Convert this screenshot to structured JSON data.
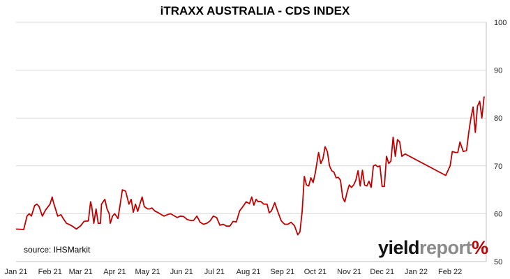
{
  "source_note": "source: IHSMarkit",
  "brand": {
    "part1": "yield",
    "part2": "report",
    "symbol": "%"
  },
  "colors": {
    "series": "#c00000",
    "grid": "#d9d9d9",
    "axis": "#bfbfbf"
  },
  "chart_data": {
    "type": "line",
    "title": "iTRAXX AUSTRALIA - CDS INDEX",
    "xlabel": "",
    "ylabel": "",
    "ylim": [
      50,
      100
    ],
    "y_ticks": [
      50,
      60,
      70,
      80,
      90,
      100
    ],
    "y_axis_side": "right",
    "grid": true,
    "legend": "none",
    "x_ticks": [
      "Jan 21",
      "Feb 21",
      "Mar 21",
      "Apr 21",
      "May 21",
      "Jun 21",
      "Jul 21",
      "Aug 21",
      "Sep 21",
      "Oct 21",
      "Nov 21",
      "Dec 21",
      "Jan 22",
      "Feb 22"
    ],
    "x_range": [
      "2021-01-01",
      "2022-03-06"
    ],
    "series": [
      {
        "x": [
          "2021-01-01",
          "2021-01-08",
          "2021-01-11",
          "2021-01-13",
          "2021-01-15",
          "2021-01-18",
          "2021-01-20",
          "2021-01-22",
          "2021-01-25",
          "2021-01-28",
          "2021-02-01",
          "2021-02-03",
          "2021-02-04",
          "2021-02-08",
          "2021-02-11",
          "2021-02-13",
          "2021-02-16",
          "2021-02-19",
          "2021-02-22",
          "2021-02-25",
          "2021-03-01",
          "2021-03-04",
          "2021-03-08",
          "2021-03-10",
          "2021-03-11",
          "2021-03-13",
          "2021-03-15",
          "2021-03-17",
          "2021-03-19",
          "2021-03-20",
          "2021-03-23",
          "2021-03-25",
          "2021-03-27",
          "2021-03-28",
          "2021-03-30",
          "2021-04-01",
          "2021-04-04",
          "2021-04-06",
          "2021-04-08",
          "2021-04-11",
          "2021-04-14",
          "2021-04-16",
          "2021-04-18",
          "2021-04-20",
          "2021-04-22",
          "2021-04-24",
          "2021-04-26",
          "2021-04-28",
          "2021-05-01",
          "2021-05-03",
          "2021-05-05",
          "2021-05-08",
          "2021-05-10",
          "2021-05-13",
          "2021-05-16",
          "2021-05-19",
          "2021-05-22",
          "2021-05-25",
          "2021-05-28",
          "2021-05-31",
          "2021-06-03",
          "2021-06-06",
          "2021-06-09",
          "2021-06-12",
          "2021-06-15",
          "2021-06-18",
          "2021-06-21",
          "2021-06-24",
          "2021-06-27",
          "2021-06-30",
          "2021-07-03",
          "2021-07-06",
          "2021-07-09",
          "2021-07-12",
          "2021-07-15",
          "2021-07-18",
          "2021-07-21",
          "2021-07-24",
          "2021-07-27",
          "2021-07-30",
          "2021-08-02",
          "2021-08-04",
          "2021-08-06",
          "2021-08-08",
          "2021-08-10",
          "2021-08-12",
          "2021-08-15",
          "2021-08-18",
          "2021-08-20",
          "2021-08-22",
          "2021-08-25",
          "2021-08-28",
          "2021-08-31",
          "2021-09-03",
          "2021-09-06",
          "2021-09-09",
          "2021-09-12",
          "2021-09-15",
          "2021-09-17",
          "2021-09-19",
          "2021-09-21",
          "2021-09-23",
          "2021-09-25",
          "2021-09-27",
          "2021-09-29",
          "2021-10-01",
          "2021-10-04",
          "2021-10-06",
          "2021-10-08",
          "2021-10-10",
          "2021-10-12",
          "2021-10-14",
          "2021-10-16",
          "2021-10-18",
          "2021-10-20",
          "2021-10-22",
          "2021-10-24",
          "2021-10-26",
          "2021-10-28",
          "2021-10-30",
          "2021-11-01",
          "2021-11-03",
          "2021-11-05",
          "2021-11-07",
          "2021-11-09",
          "2021-11-11",
          "2021-11-13",
          "2021-11-15",
          "2021-11-17",
          "2021-11-19",
          "2021-11-21",
          "2021-11-23",
          "2021-11-25",
          "2021-11-27",
          "2021-11-29",
          "2021-12-01",
          "2021-12-03",
          "2021-12-05",
          "2021-12-07",
          "2021-12-09",
          "2021-12-11",
          "2021-12-13",
          "2021-12-15",
          "2021-12-17",
          "2021-12-19",
          "2021-12-22",
          "2022-01-28",
          "2022-02-01",
          "2022-02-03",
          "2022-02-06",
          "2022-02-08",
          "2022-02-10",
          "2022-02-13",
          "2022-02-16",
          "2022-02-18",
          "2022-02-20",
          "2022-02-22",
          "2022-02-24",
          "2022-02-26",
          "2022-02-28",
          "2022-03-02",
          "2022-03-04"
        ],
        "values": [
          56.8,
          56.7,
          59.5,
          60.0,
          59.5,
          61.7,
          62.0,
          61.5,
          59.5,
          60.8,
          62.0,
          63.5,
          62.5,
          59.5,
          59.8,
          59.0,
          58.0,
          57.7,
          57.3,
          56.8,
          57.5,
          58.4,
          58.5,
          62.5,
          61.6,
          58.0,
          61.0,
          58.0,
          58.0,
          62.0,
          63.0,
          61.0,
          60.0,
          58.0,
          59.5,
          60.0,
          59.0,
          62.0,
          65.0,
          64.7,
          62.0,
          63.0,
          60.3,
          62.0,
          60.5,
          62.0,
          63.5,
          61.5,
          61.0,
          61.0,
          61.2,
          60.5,
          60.3,
          59.9,
          59.5,
          59.8,
          60.0,
          59.6,
          59.2,
          59.5,
          59.4,
          58.8,
          58.6,
          58.6,
          59.5,
          58.2,
          57.8,
          58.0,
          58.5,
          59.5,
          59.2,
          57.6,
          57.8,
          57.4,
          57.4,
          58.4,
          58.3,
          60.6,
          61.5,
          62.5,
          62.1,
          63.5,
          61.8,
          63.0,
          62.5,
          62.6,
          62.0,
          62.0,
          60.2,
          60.6,
          62.3,
          60.3,
          58.5,
          57.8,
          57.8,
          58.2,
          57.5,
          55.6,
          56.2,
          60.5,
          67.8,
          66.0,
          65.8,
          67.5,
          66.5,
          68.5,
          72.8,
          70.5,
          71.5,
          74.0,
          73.0,
          70.0,
          69.0,
          68.7,
          67.5,
          67.6,
          67.0,
          63.4,
          62.5,
          64.5,
          66.0,
          65.5,
          66.0,
          67.0,
          69.0,
          65.8,
          69.1,
          66.0,
          65.8,
          66.8,
          65.5,
          70.0,
          70.2,
          69.8,
          70.0,
          65.7,
          65.7,
          72.0,
          70.5,
          71.0,
          76.0,
          72.0,
          75.5,
          75.0,
          72.0,
          72.5,
          68.0,
          70.0,
          73.0,
          72.8,
          72.8,
          75.0,
          73.0,
          73.2,
          77.0,
          80.0,
          82.3,
          77.0,
          82.5,
          83.5,
          80.0,
          84.5
        ]
      }
    ]
  }
}
